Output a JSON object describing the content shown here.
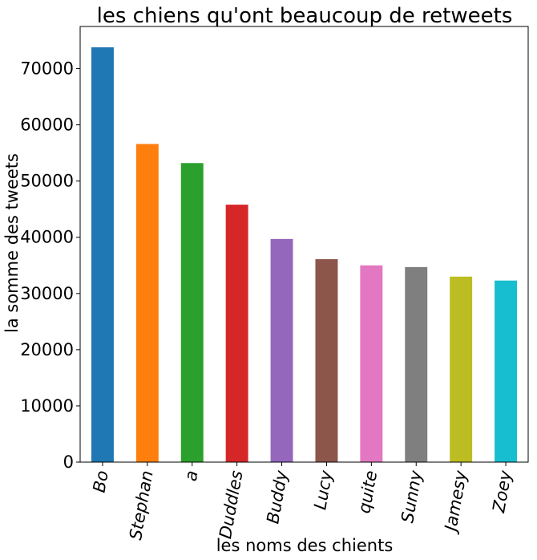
{
  "chart_data": {
    "type": "bar",
    "title": "les chiens qu'ont beaucoup de retweets",
    "xlabel": "les noms des chients",
    "ylabel": "la somme des tweets",
    "categories": [
      "Bo",
      "Stephan",
      "a",
      "Duddles",
      "Buddy",
      "Lucy",
      "quite",
      "Sunny",
      "Jamesy",
      "Zoey"
    ],
    "values": [
      73800,
      56600,
      53200,
      45800,
      39700,
      36100,
      35000,
      34700,
      33000,
      32300
    ],
    "colors": [
      "#1f77b4",
      "#ff7f0e",
      "#2ca02c",
      "#d62728",
      "#9467bd",
      "#8c564b",
      "#e377c2",
      "#7f7f7f",
      "#bcbd22",
      "#17becf"
    ],
    "ylim": [
      0,
      77500
    ],
    "yticks": [
      0,
      10000,
      20000,
      30000,
      40000,
      50000,
      60000,
      70000
    ],
    "ytick_labels": [
      "0",
      "10000",
      "20000",
      "30000",
      "40000",
      "50000",
      "60000",
      "70000"
    ],
    "grid": false,
    "legend": false
  }
}
